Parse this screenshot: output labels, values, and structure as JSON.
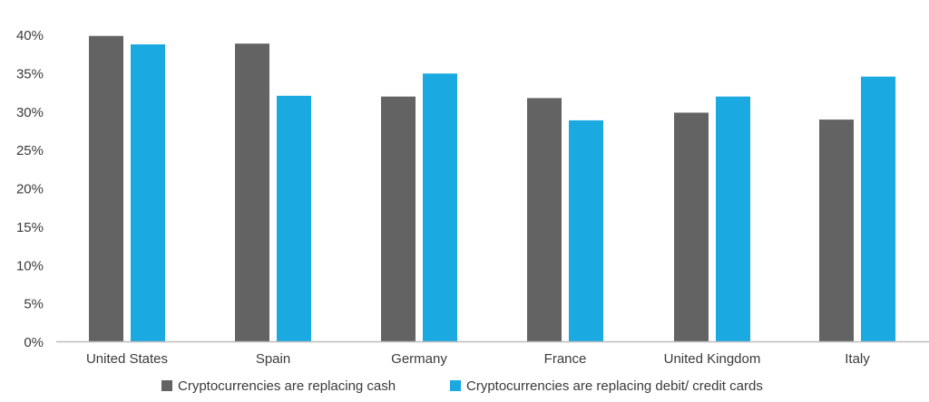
{
  "chart_data": {
    "type": "bar",
    "categories": [
      "United States",
      "Spain",
      "Germany",
      "France",
      "United Kingdom",
      "Italy"
    ],
    "series": [
      {
        "name": "Cryptocurrencies are replacing cash",
        "color": "#636363",
        "values": [
          39.8,
          38.8,
          31.9,
          31.7,
          29.8,
          28.9
        ]
      },
      {
        "name": "Cryptocurrencies are replacing debit/ credit cards",
        "color": "#1aa9e1",
        "values": [
          38.7,
          32.0,
          34.9,
          28.8,
          31.9,
          34.5
        ]
      }
    ],
    "yticks": [
      "0%",
      "5%",
      "10%",
      "15%",
      "20%",
      "25%",
      "30%",
      "35%",
      "40%"
    ],
    "ylim": [
      0,
      40
    ],
    "grid": false,
    "legend_position": "bottom",
    "title": "",
    "xlabel": "",
    "ylabel": ""
  },
  "colors": {
    "axis": "#bdbdbd",
    "text": "#3a3a3a"
  }
}
